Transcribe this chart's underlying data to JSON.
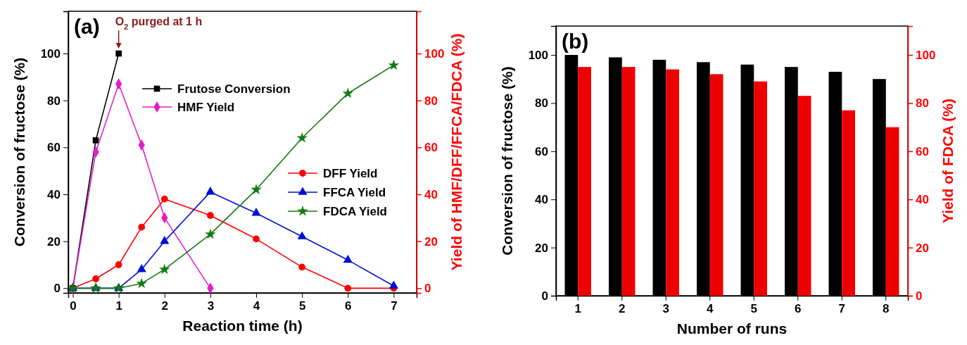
{
  "chart_data": [
    {
      "type": "line",
      "title": "(a)",
      "xlabel": "Reaction time (h)",
      "ylabel": "Conversion of fructose (%)",
      "y2label": "Yield of HMF/DFF/FFCA/FDCA (%)",
      "xlim": [
        -0.1,
        7.5
      ],
      "xticks": [
        0,
        1,
        2,
        3,
        4,
        5,
        6,
        7
      ],
      "ylim": [
        -2,
        118
      ],
      "yticks": [
        0,
        20,
        40,
        60,
        80,
        100
      ],
      "y2lim": [
        -2,
        118
      ],
      "y2ticks": [
        0,
        20,
        40,
        60,
        80,
        100
      ],
      "legend": "right",
      "line_style": "solid",
      "annotations": [
        {
          "text": "O$_{2}$ purged at 1 h",
          "x": 1,
          "y": 100
        }
      ],
      "series": [
        {
          "name": "Frutose Conversion",
          "color": "#000000",
          "marker": "square",
          "x": [
            0,
            0.5,
            1
          ],
          "values": [
            0,
            63,
            100
          ]
        },
        {
          "name": "HMF Yield",
          "color": "#e020c8",
          "marker": "diamond",
          "x": [
            0,
            0.5,
            1,
            1.5,
            2,
            3
          ],
          "values": [
            0,
            58,
            87,
            61,
            30,
            0
          ]
        },
        {
          "name": "DFF Yield",
          "color": "#ff0000",
          "marker": "circle",
          "x": [
            0,
            0.5,
            1,
            1.5,
            2,
            3,
            4,
            5,
            6,
            7
          ],
          "values": [
            0,
            4,
            10,
            26,
            38,
            31,
            21,
            9,
            0,
            0
          ]
        },
        {
          "name": "FFCA Yield",
          "color": "#0010d0",
          "marker": "triangle",
          "x": [
            0,
            0.5,
            1,
            1.5,
            2,
            3,
            4,
            5,
            6,
            7
          ],
          "values": [
            0,
            0,
            0,
            8,
            20,
            41,
            32,
            22,
            12,
            1
          ]
        },
        {
          "name": "FDCA Yield",
          "color": "#117a11",
          "marker": "star",
          "x": [
            0,
            0.5,
            1,
            1.5,
            2,
            3,
            4,
            5,
            6,
            7
          ],
          "values": [
            0,
            0,
            0,
            2,
            8,
            23,
            42,
            64,
            83,
            95
          ]
        }
      ]
    },
    {
      "type": "bar",
      "title": "(b)",
      "xlabel": "Number of runs",
      "ylabel": "Conversion of fructose (%)",
      "y2label": "Yield of FDCA (%)",
      "categories": [
        "1",
        "2",
        "3",
        "4",
        "5",
        "6",
        "7",
        "8"
      ],
      "ylim": [
        0,
        112
      ],
      "yticks": [
        0,
        20,
        40,
        60,
        80,
        100
      ],
      "y2lim": [
        0,
        112
      ],
      "y2ticks": [
        0,
        20,
        40,
        60,
        80,
        100
      ],
      "series": [
        {
          "color": "#000000",
          "values": [
            100,
            99,
            98,
            97,
            96,
            95,
            93,
            90
          ]
        },
        {
          "color": "#ee0000",
          "values": [
            95,
            95,
            94,
            92,
            89,
            83,
            77,
            70
          ]
        }
      ]
    }
  ]
}
